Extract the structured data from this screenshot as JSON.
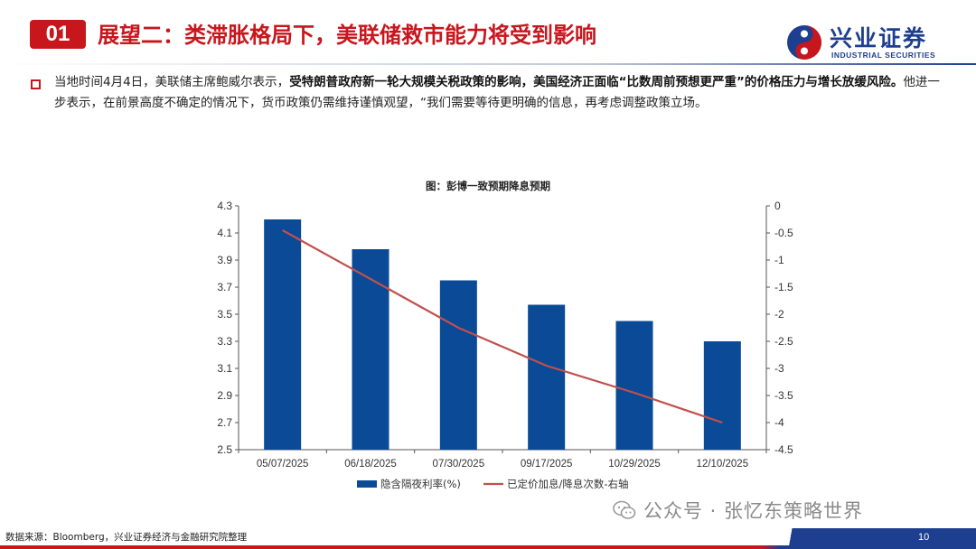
{
  "header": {
    "section_number": "01",
    "title": "展望二：类滞胀格局下，美联储救市能力将受到影响",
    "logo_cn": "兴业证券",
    "logo_en": "INDUSTRIAL SECURITIES",
    "accent_color": "#c8161d",
    "brand_color": "#1e3f8f"
  },
  "body": {
    "part1": "当地时间4月4日，美联储主席鲍威尔表示，",
    "part2_bold": "受特朗普政府新一轮大规模关税政策的影响，美国经济正面临“比数周前预想更严重”的价格压力与增长放缓风险。",
    "part3": "他进一步表示，在前景高度不确定的情况下，货币政策仍需维持谨慎观望，“我们需要等待更明确的信息，再考虑调整政策立场。"
  },
  "chart_data": {
    "type": "bar",
    "title": "图：彭博一致预期降息预期",
    "categories": [
      "05/07/2025",
      "06/18/2025",
      "07/30/2025",
      "09/17/2025",
      "10/29/2025",
      "12/10/2025"
    ],
    "series": [
      {
        "name": "隐含隔夜利率(%)",
        "type": "bar",
        "axis": "left",
        "color": "#0a4a96",
        "values": [
          4.2,
          3.98,
          3.75,
          3.57,
          3.45,
          3.3
        ]
      },
      {
        "name": "已定价加息/降息次数-右轴",
        "type": "line",
        "axis": "right",
        "color": "#c0504d",
        "values": [
          -0.45,
          -1.35,
          -2.25,
          -2.95,
          -3.45,
          -4.0
        ]
      }
    ],
    "ylim_left": [
      2.5,
      4.3
    ],
    "yticks_left": [
      "2.5",
      "2.7",
      "2.9",
      "3.1",
      "3.3",
      "3.5",
      "3.7",
      "3.9",
      "4.1",
      "4.3"
    ],
    "ylim_right": [
      -4.5,
      0
    ],
    "yticks_right": [
      "-4.5",
      "-4",
      "-3.5",
      "-3",
      "-2.5",
      "-2",
      "-1.5",
      "-1",
      "-0.5",
      "0"
    ],
    "legend_position": "bottom",
    "grid": false
  },
  "footer": {
    "source": "数据来源：Bloomberg，兴业证券经济与金融研究院整理",
    "watermark": "公众号 · 张忆东策略世界",
    "page_number": "10"
  }
}
